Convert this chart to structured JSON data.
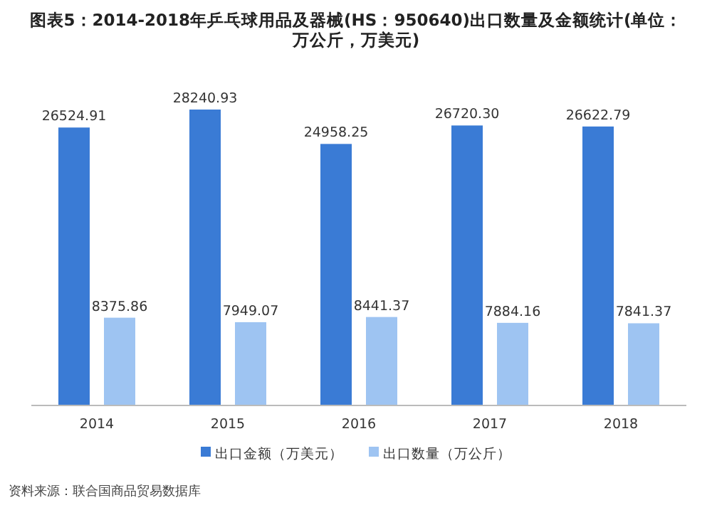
{
  "chart_data": {
    "type": "bar",
    "title": "图表5：2014-2018年乒乓球用品及器械(HS：950640)出口数量及金额统计(单位：万公斤，万美元)",
    "categories": [
      "2014",
      "2015",
      "2016",
      "2017",
      "2018"
    ],
    "series": [
      {
        "name": "出口金额（万美元）",
        "color": "#3a7bd5",
        "values": [
          26524.91,
          28240.93,
          24958.25,
          26720.3,
          26622.79
        ],
        "value_labels": [
          "26524.91",
          "28240.93",
          "24958.25",
          "26720.30",
          "26622.79"
        ]
      },
      {
        "name": "出口数量（万公斤）",
        "color": "#9ec4f2",
        "values": [
          8375.86,
          7949.07,
          8441.37,
          7884.16,
          7841.37
        ],
        "value_labels": [
          "8375.86",
          "7949.07",
          "8441.37",
          "7884.16",
          "7841.37"
        ]
      }
    ],
    "legend": "bottom",
    "annotations": [
      "资料来源：联合国商品贸易数据库"
    ]
  }
}
